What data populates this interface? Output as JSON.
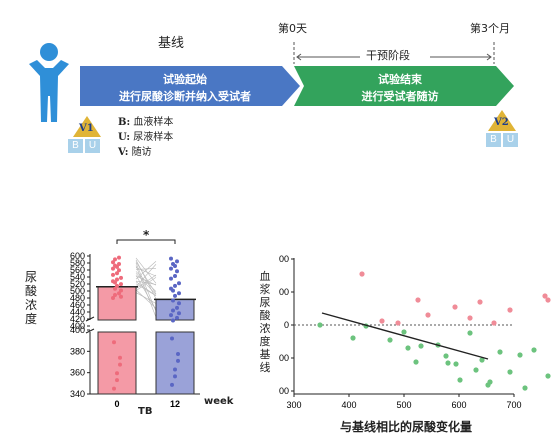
{
  "timeline": {
    "baseline_label": "基线",
    "day0_label": "第0天",
    "month3_label": "第3个月",
    "intervention_label": "干预阶段",
    "arrow1_line1": "试验起始",
    "arrow1_line2": "进行尿酸诊断并纳入受试者",
    "arrow2_line1": "试验结束",
    "arrow2_line2": "进行受试者随访",
    "v1": "V1",
    "v2": "V2",
    "b": "B",
    "u": "U",
    "legend": [
      {
        "key": "B:",
        "text": "血液样本"
      },
      {
        "key": "U:",
        "text": "尿液样本"
      },
      {
        "key": "V:",
        "text": "随访"
      }
    ],
    "colors": {
      "arrow1": "#4a77c4",
      "arrow2": "#33a35c",
      "person": "#2f8fd8",
      "triangle": "#e0b436"
    }
  },
  "bar_chart": {
    "y_title": "尿酸浓度",
    "x_title": "TB",
    "x_unit": "week",
    "sig": "*",
    "upper_ticks": [
      "600",
      "580",
      "560",
      "540",
      "520",
      "500",
      "480",
      "460",
      "440",
      "420",
      "400"
    ],
    "lower_ticks": [
      "400",
      "380",
      "360",
      "340"
    ],
    "x_ticks": [
      "0",
      "12"
    ]
  },
  "chart_data": [
    {
      "type": "bar",
      "categories": [
        "0",
        "12"
      ],
      "values": [
        512,
        476
      ],
      "xlabel": "TB",
      "ylabel": "尿酸浓度",
      "ylim_upper": [
        400,
        600
      ],
      "ylim_lower": [
        340,
        400
      ],
      "colors": [
        "#f49aa6",
        "#9aa2d8"
      ]
    },
    {
      "type": "scatter",
      "xlabel": "与基线相比的尿酸变化量",
      "ylabel": "血浆尿酸浓度基线",
      "xlim": [
        300,
        700
      ],
      "x_ticks": [
        "300",
        "400",
        "500",
        "600",
        "700"
      ],
      "y_ticks": [
        "00",
        "00",
        "0",
        "00",
        "00"
      ],
      "trend_line": [
        [
          370,
          18
        ],
        [
          640,
          -40
        ]
      ]
    }
  ],
  "scatter": {
    "y_title": "血浆尿酸浓度基线",
    "x_title": "与基线相比的尿酸变化量",
    "x_ticks": [
      "300",
      "400",
      "500",
      "600",
      "700"
    ],
    "y_ticks": [
      "00",
      "00",
      "0",
      "00",
      "00"
    ]
  }
}
